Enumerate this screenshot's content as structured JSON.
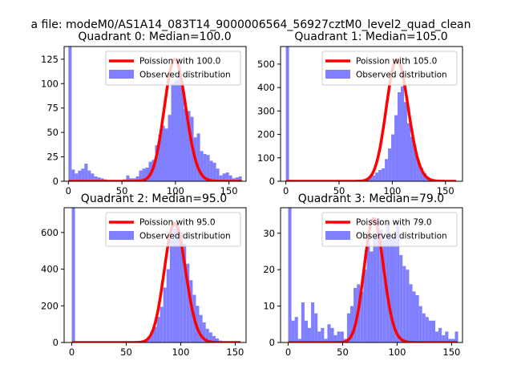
{
  "figure_title": "a file: modeM0/AS1A14_083T14_9000006564_56927cztM0_level2_quad_clean",
  "colors": {
    "poisson": "#ff0000",
    "observed": "#8080ff",
    "axis": "#000000"
  },
  "chart_data": [
    {
      "type": "bar",
      "title": "Quadrant 0: Median=100.0",
      "legend": {
        "placement": "top-right",
        "poisson_label": "Poission with 100.0",
        "observed_label": "Observed distribution"
      },
      "xlim": [
        -4,
        166
      ],
      "ylim": [
        0,
        138
      ],
      "xticks": [
        0,
        50,
        100,
        150
      ],
      "yticks": [
        0,
        25,
        50,
        75,
        100,
        125
      ],
      "bin_width": 3,
      "bins": [
        [
          0,
          138
        ],
        [
          3,
          12
        ],
        [
          6,
          8
        ],
        [
          9,
          11
        ],
        [
          12,
          13
        ],
        [
          15,
          18
        ],
        [
          18,
          11
        ],
        [
          21,
          8
        ],
        [
          24,
          5
        ],
        [
          27,
          4
        ],
        [
          30,
          3
        ],
        [
          33,
          2
        ],
        [
          36,
          1
        ],
        [
          39,
          1
        ],
        [
          42,
          0
        ],
        [
          45,
          1
        ],
        [
          48,
          1
        ],
        [
          51,
          2
        ],
        [
          54,
          6
        ],
        [
          57,
          3
        ],
        [
          60,
          3
        ],
        [
          63,
          5
        ],
        [
          66,
          11
        ],
        [
          69,
          13
        ],
        [
          72,
          14
        ],
        [
          75,
          20
        ],
        [
          78,
          22
        ],
        [
          81,
          37
        ],
        [
          84,
          48
        ],
        [
          87,
          57
        ],
        [
          90,
          54
        ],
        [
          93,
          68
        ],
        [
          96,
          100
        ],
        [
          99,
          104
        ],
        [
          102,
          112
        ],
        [
          105,
          100
        ],
        [
          108,
          74
        ],
        [
          111,
          72
        ],
        [
          114,
          66
        ],
        [
          117,
          45
        ],
        [
          120,
          49
        ],
        [
          123,
          31
        ],
        [
          126,
          28
        ],
        [
          129,
          27
        ],
        [
          132,
          21
        ],
        [
          135,
          19
        ],
        [
          138,
          13
        ],
        [
          141,
          6
        ],
        [
          144,
          8
        ],
        [
          147,
          9
        ],
        [
          150,
          6
        ],
        [
          153,
          3
        ],
        [
          156,
          4
        ],
        [
          159,
          5
        ]
      ],
      "poisson_mean": 100.0,
      "poisson_peak": 125,
      "poisson_range": [
        0,
        162
      ]
    },
    {
      "type": "bar",
      "title": "Quadrant 1: Median=105.0",
      "legend": {
        "placement": "top-right",
        "poisson_label": "Poission with 105.0",
        "observed_label": "Observed distribution"
      },
      "xlim": [
        -5,
        166
      ],
      "ylim": [
        0,
        575
      ],
      "xticks": [
        0,
        50,
        100,
        150
      ],
      "yticks": [
        0,
        100,
        200,
        300,
        400,
        500
      ],
      "bin_width": 3,
      "bins": [
        [
          0,
          575
        ],
        [
          3,
          6
        ],
        [
          6,
          3
        ],
        [
          9,
          2
        ],
        [
          12,
          2
        ],
        [
          15,
          1
        ],
        [
          18,
          1
        ],
        [
          21,
          1
        ],
        [
          24,
          1
        ],
        [
          27,
          1
        ],
        [
          30,
          1
        ],
        [
          33,
          1
        ],
        [
          36,
          1
        ],
        [
          39,
          1
        ],
        [
          42,
          1
        ],
        [
          45,
          1
        ],
        [
          48,
          1
        ],
        [
          51,
          1
        ],
        [
          54,
          1
        ],
        [
          57,
          1
        ],
        [
          60,
          1
        ],
        [
          63,
          2
        ],
        [
          66,
          3
        ],
        [
          69,
          5
        ],
        [
          72,
          7
        ],
        [
          75,
          10
        ],
        [
          78,
          22
        ],
        [
          81,
          25
        ],
        [
          84,
          37
        ],
        [
          87,
          48
        ],
        [
          90,
          55
        ],
        [
          93,
          95
        ],
        [
          96,
          140
        ],
        [
          99,
          200
        ],
        [
          102,
          282
        ],
        [
          105,
          380
        ],
        [
          108,
          405
        ],
        [
          111,
          338
        ],
        [
          114,
          248
        ],
        [
          117,
          190
        ],
        [
          120,
          140
        ],
        [
          123,
          87
        ],
        [
          126,
          58
        ],
        [
          129,
          35
        ],
        [
          132,
          18
        ],
        [
          135,
          10
        ],
        [
          138,
          7
        ],
        [
          141,
          3
        ],
        [
          144,
          2
        ],
        [
          147,
          1
        ],
        [
          150,
          1
        ],
        [
          153,
          1
        ],
        [
          156,
          1
        ]
      ],
      "poisson_mean": 105.0,
      "poisson_peak": 520,
      "poisson_range": [
        0,
        160
      ]
    },
    {
      "type": "bar",
      "title": "Quadrant 2: Median=95.0",
      "legend": {
        "placement": "top-right",
        "poisson_label": "Poission with 95.0",
        "observed_label": "Observed distribution"
      },
      "xlim": [
        -7,
        160
      ],
      "ylim": [
        0,
        735
      ],
      "xticks": [
        0,
        50,
        100,
        150
      ],
      "yticks": [
        0,
        200,
        400,
        600
      ],
      "bin_width": 3,
      "bins": [
        [
          0,
          735
        ],
        [
          3,
          1
        ],
        [
          6,
          1
        ],
        [
          9,
          1
        ],
        [
          12,
          1
        ],
        [
          15,
          1
        ],
        [
          18,
          1
        ],
        [
          21,
          1
        ],
        [
          24,
          1
        ],
        [
          27,
          1
        ],
        [
          30,
          1
        ],
        [
          33,
          1
        ],
        [
          36,
          1
        ],
        [
          39,
          1
        ],
        [
          42,
          1
        ],
        [
          45,
          1
        ],
        [
          48,
          1
        ],
        [
          51,
          1
        ],
        [
          54,
          2
        ],
        [
          57,
          2
        ],
        [
          60,
          3
        ],
        [
          63,
          8
        ],
        [
          66,
          15
        ],
        [
          69,
          32
        ],
        [
          72,
          58
        ],
        [
          75,
          85
        ],
        [
          78,
          140
        ],
        [
          81,
          195
        ],
        [
          84,
          300
        ],
        [
          87,
          400
        ],
        [
          90,
          560
        ],
        [
          93,
          620
        ],
        [
          96,
          640
        ],
        [
          99,
          600
        ],
        [
          102,
          540
        ],
        [
          105,
          430
        ],
        [
          108,
          340
        ],
        [
          111,
          260
        ],
        [
          114,
          200
        ],
        [
          117,
          150
        ],
        [
          120,
          110
        ],
        [
          123,
          75
        ],
        [
          126,
          55
        ],
        [
          129,
          35
        ],
        [
          132,
          22
        ],
        [
          135,
          10
        ],
        [
          138,
          6
        ],
        [
          141,
          3
        ],
        [
          144,
          2
        ],
        [
          147,
          1
        ],
        [
          150,
          1
        ],
        [
          153,
          1
        ]
      ],
      "poisson_mean": 95.0,
      "poisson_peak": 650,
      "poisson_range": [
        0,
        155
      ]
    },
    {
      "type": "bar",
      "title": "Quadrant 3: Median=79.0",
      "legend": {
        "placement": "top-right",
        "poisson_label": "Poission with 79.0",
        "observed_label": "Observed distribution"
      },
      "xlim": [
        -7,
        160
      ],
      "ylim": [
        0,
        37
      ],
      "xticks": [
        0,
        50,
        100,
        150
      ],
      "yticks": [
        0,
        10,
        20,
        30
      ],
      "bin_width": 3,
      "bins": [
        [
          0,
          37
        ],
        [
          3,
          6
        ],
        [
          6,
          7
        ],
        [
          9,
          1
        ],
        [
          12,
          11
        ],
        [
          15,
          6
        ],
        [
          18,
          4
        ],
        [
          21,
          11
        ],
        [
          24,
          8
        ],
        [
          27,
          3
        ],
        [
          30,
          4
        ],
        [
          33,
          1
        ],
        [
          36,
          5
        ],
        [
          39,
          4
        ],
        [
          42,
          2
        ],
        [
          45,
          3
        ],
        [
          48,
          3
        ],
        [
          51,
          1
        ],
        [
          54,
          8
        ],
        [
          57,
          10
        ],
        [
          60,
          15
        ],
        [
          63,
          16
        ],
        [
          66,
          14
        ],
        [
          69,
          20
        ],
        [
          72,
          28
        ],
        [
          75,
          25
        ],
        [
          78,
          29
        ],
        [
          81,
          34
        ],
        [
          84,
          31
        ],
        [
          87,
          28
        ],
        [
          90,
          33
        ],
        [
          93,
          30
        ],
        [
          96,
          29
        ],
        [
          99,
          32
        ],
        [
          102,
          24
        ],
        [
          105,
          21
        ],
        [
          108,
          20
        ],
        [
          111,
          16
        ],
        [
          114,
          14
        ],
        [
          117,
          13
        ],
        [
          120,
          10
        ],
        [
          123,
          8
        ],
        [
          126,
          7
        ],
        [
          129,
          6
        ],
        [
          132,
          6
        ],
        [
          135,
          3
        ],
        [
          138,
          4
        ],
        [
          141,
          2
        ],
        [
          144,
          3
        ],
        [
          147,
          1
        ],
        [
          150,
          1
        ],
        [
          153,
          3
        ]
      ],
      "poisson_mean": 79.0,
      "poisson_peak": 34,
      "poisson_range": [
        0,
        155
      ]
    }
  ]
}
